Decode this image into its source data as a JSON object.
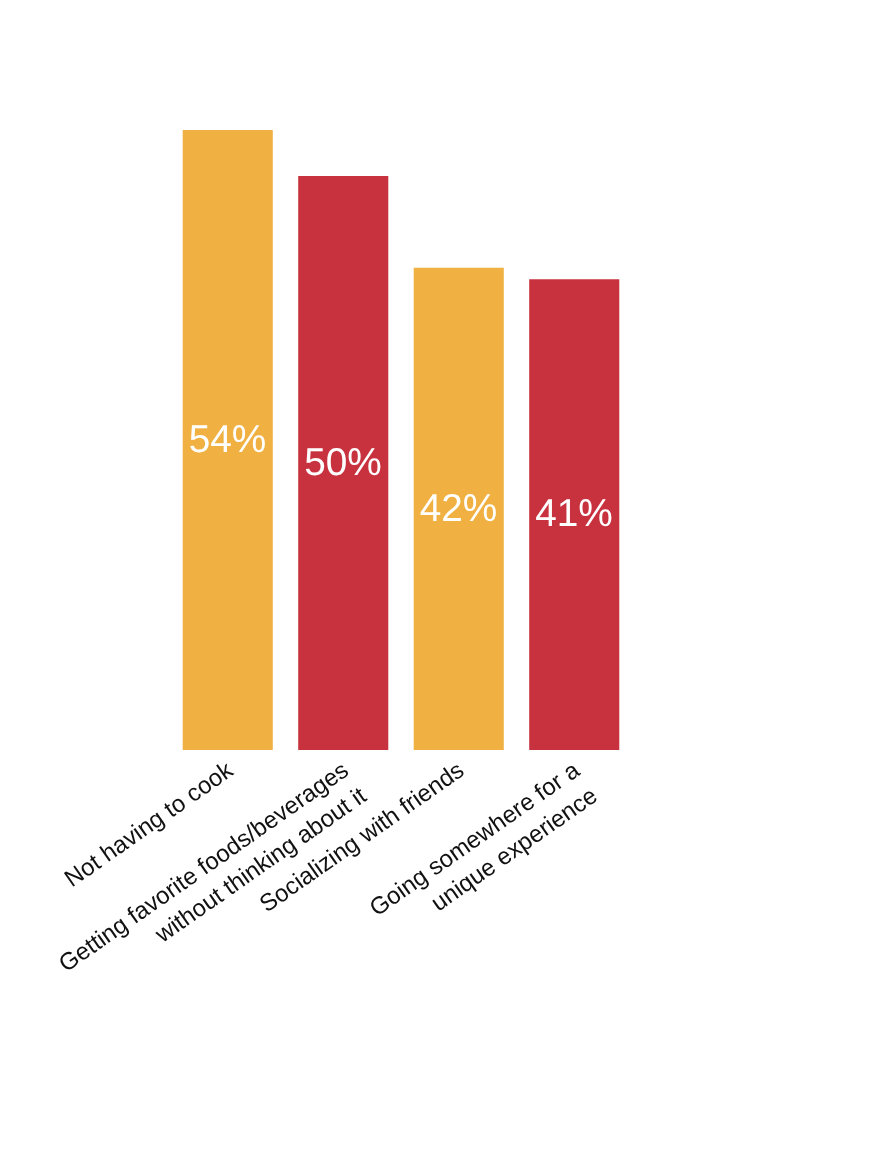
{
  "chart_data": {
    "type": "bar",
    "categories": [
      "Not having to cook",
      "Getting favorite foods/beverages\nwithout thinking about it",
      "Socializing with friends",
      "Going somewhere for a\nunique experience"
    ],
    "values": [
      54,
      50,
      42,
      41
    ],
    "colors": [
      "#f0b142",
      "#c8323f",
      "#f0b142",
      "#c8323f"
    ],
    "value_labels": [
      "54%",
      "50%",
      "42%",
      "41%"
    ]
  }
}
